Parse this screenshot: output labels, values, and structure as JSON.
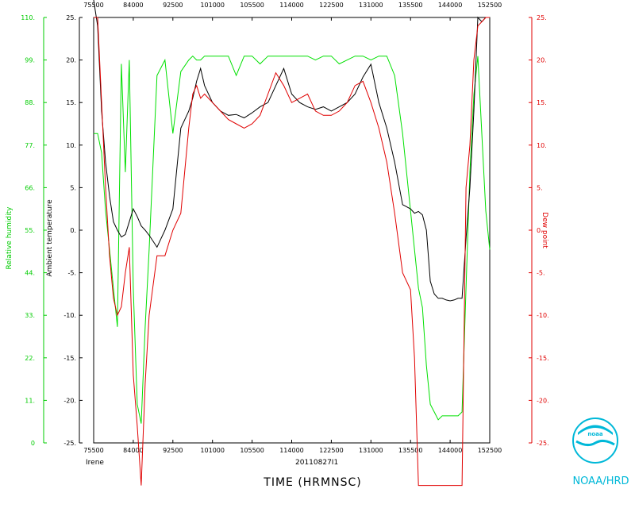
{
  "chart_data": {
    "type": "line",
    "title": "",
    "storm": "Irene",
    "flight_id": "20110827I1",
    "xlabel": "TIME (HRMNSC)",
    "x_ticks": [
      "75500",
      "84000",
      "92500",
      "101000",
      "105500",
      "114000",
      "122500",
      "131000",
      "135500",
      "144000",
      "152500"
    ],
    "y_left_label": "Ambient temperature",
    "y_left_ticks": [
      "25.",
      "20.",
      "15.",
      "10.",
      "5.",
      "0.",
      "-5.",
      "-10.",
      "-15.",
      "-20.",
      "-25."
    ],
    "y_left_range": [
      -25,
      25
    ],
    "y_rh_label": "Relative humidity",
    "y_rh_ticks": [
      "110.",
      "99.",
      "88.",
      "77.",
      "66.",
      "55.",
      "44.",
      "33.",
      "22.",
      "11.",
      "0"
    ],
    "y_rh_range": [
      0,
      110
    ],
    "y_right_label": "Dew point",
    "y_right_ticks": [
      "25.",
      "20.",
      "15.",
      "10.",
      "5.",
      "0.",
      "-5.",
      "-10.",
      "-15.",
      "-20.",
      "-25."
    ],
    "x_index_range": [
      0,
      100
    ],
    "series": [
      {
        "name": "Ambient temperature",
        "color": "#000000",
        "axis": "left",
        "x": [
          0,
          1,
          2,
          3,
          4,
          5,
          6,
          7,
          8,
          9,
          10,
          11,
          12,
          13,
          14,
          16,
          18,
          20,
          22,
          24,
          25,
          26,
          27,
          28,
          30,
          32,
          34,
          36,
          38,
          40,
          42,
          44,
          46,
          48,
          50,
          52,
          54,
          56,
          58,
          60,
          62,
          64,
          66,
          68,
          70,
          72,
          74,
          76,
          78,
          80,
          81,
          82,
          83,
          84,
          85,
          86,
          87,
          88,
          89,
          90,
          91,
          92,
          93,
          94,
          95,
          96,
          97,
          98,
          99,
          100
        ],
        "values": [
          30,
          24,
          14,
          8,
          4,
          1,
          0,
          -0.8,
          -0.5,
          1,
          2.5,
          1.6,
          0.5,
          0,
          -0.6,
          -2,
          0,
          2.5,
          12,
          14,
          15.5,
          17.5,
          19,
          17,
          15,
          14,
          13.5,
          13.6,
          13.2,
          13.8,
          14.5,
          15,
          17,
          19,
          16,
          15,
          14.5,
          14.2,
          14.5,
          14,
          14.5,
          15,
          16,
          18,
          19.5,
          15,
          12,
          8,
          3,
          2.5,
          2,
          2.2,
          1.8,
          0,
          -6,
          -7.5,
          -8,
          -8,
          -8.2,
          -8.3,
          -8.2,
          -8,
          -8,
          -1,
          5,
          14,
          25,
          24.5,
          25,
          25
        ]
      },
      {
        "name": "Dew point",
        "color": "#e00000",
        "axis": "right",
        "x": [
          0,
          1,
          2,
          3,
          4,
          5,
          6,
          7,
          8,
          9,
          10,
          11,
          12,
          13,
          14,
          16,
          18,
          20,
          22,
          24,
          25,
          26,
          27,
          28,
          30,
          32,
          34,
          36,
          38,
          40,
          42,
          44,
          46,
          48,
          50,
          52,
          54,
          56,
          58,
          60,
          62,
          64,
          66,
          68,
          70,
          72,
          74,
          76,
          78,
          80,
          81,
          82,
          83,
          84,
          85,
          86,
          87,
          88,
          89,
          90,
          91,
          92,
          93,
          94,
          95,
          96,
          97,
          98,
          99,
          100
        ],
        "values": [
          25,
          25,
          15,
          5,
          -3,
          -8,
          -10,
          -9,
          -5,
          -2,
          -17,
          -23,
          -30,
          -18,
          -10,
          -3,
          -3,
          0,
          2,
          12,
          16,
          17,
          15.5,
          16,
          15,
          14,
          13,
          12.5,
          12,
          12.5,
          13.5,
          16,
          18.5,
          17,
          15,
          15.5,
          16,
          14,
          13.5,
          13.5,
          14,
          15,
          17,
          17.5,
          15,
          12,
          8,
          2,
          -5,
          -7,
          -15,
          -30,
          -30,
          -30,
          -30,
          -30,
          -30,
          -30,
          -30,
          -30,
          -30,
          -30,
          -30,
          5,
          10,
          20,
          24,
          24.5,
          25,
          25
        ]
      },
      {
        "name": "Relative humidity",
        "color": "#00e000",
        "axis": "rh",
        "x": [
          0,
          1,
          2,
          3,
          4,
          5,
          6,
          7,
          8,
          9,
          10,
          11,
          12,
          13,
          14,
          16,
          18,
          20,
          22,
          24,
          25,
          26,
          27,
          28,
          30,
          32,
          34,
          36,
          38,
          40,
          42,
          44,
          46,
          48,
          50,
          52,
          54,
          56,
          58,
          60,
          62,
          64,
          66,
          68,
          70,
          72,
          74,
          76,
          78,
          80,
          81,
          82,
          83,
          84,
          85,
          86,
          87,
          88,
          89,
          90,
          91,
          92,
          93,
          94,
          95,
          96,
          97,
          98,
          99,
          100
        ],
        "values": [
          80,
          80,
          75,
          60,
          50,
          40,
          30,
          98,
          70,
          99,
          40,
          10,
          5,
          30,
          50,
          95,
          99,
          80,
          96,
          99,
          100,
          99,
          99,
          100,
          100,
          100,
          100,
          95,
          100,
          100,
          98,
          100,
          100,
          100,
          100,
          100,
          100,
          99,
          100,
          100,
          98,
          99,
          100,
          100,
          99,
          100,
          100,
          95,
          80,
          60,
          50,
          40,
          35,
          20,
          10,
          8,
          6,
          7,
          7,
          7,
          7,
          7,
          8,
          40,
          70,
          90,
          100,
          80,
          60,
          50
        ]
      }
    ]
  },
  "branding": {
    "org": "NOAA/HRD",
    "logo_text": "noaa"
  }
}
